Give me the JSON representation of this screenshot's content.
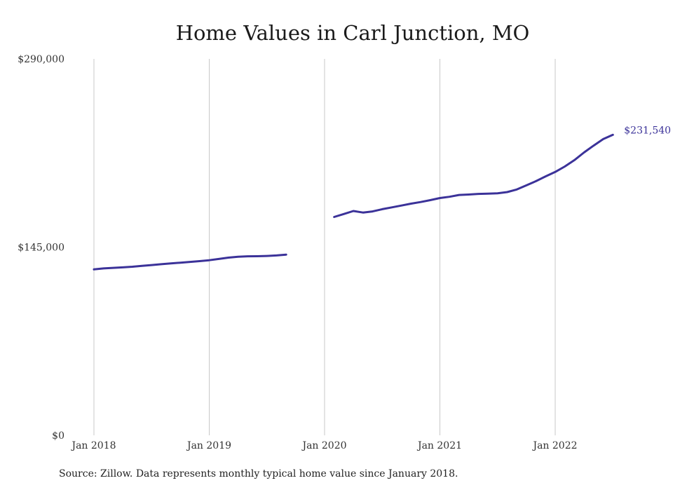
{
  "chart_data": {
    "type": "line",
    "title": "Home Values in Carl Junction, MO",
    "xlabel": "",
    "ylabel": "",
    "ylim": [
      0,
      290000
    ],
    "y_ticks": [
      "$0",
      "$145,000",
      "$290,000"
    ],
    "y_tick_values": [
      0,
      145000,
      290000
    ],
    "x_tick_labels": [
      "Jan 2018",
      "Jan 2019",
      "Jan 2020",
      "Jan 2021",
      "Jan 2022"
    ],
    "x_tick_dates": [
      "2018-01",
      "2019-01",
      "2020-01",
      "2021-01",
      "2022-01"
    ],
    "grid": "vertical",
    "line_color": "#3b3299",
    "end_label": "$231,540",
    "series": [
      {
        "segments": [
          {
            "x": [
              "2018-01",
              "2018-02",
              "2018-03",
              "2018-04",
              "2018-05",
              "2018-06",
              "2018-07",
              "2018-08",
              "2018-09",
              "2018-10",
              "2018-11",
              "2018-12",
              "2019-01",
              "2019-02",
              "2019-03",
              "2019-04",
              "2019-05",
              "2019-06",
              "2019-07",
              "2019-08",
              "2019-09"
            ],
            "y": [
              127800,
              128600,
              129000,
              129400,
              129900,
              130600,
              131200,
              131800,
              132400,
              133000,
              133600,
              134200,
              134900,
              135900,
              136900,
              137600,
              137900,
              138000,
              138200,
              138600,
              139200
            ]
          },
          {
            "x": [
              "2020-02",
              "2020-03",
              "2020-04",
              "2020-05",
              "2020-06",
              "2020-07",
              "2020-08",
              "2020-09",
              "2020-10",
              "2020-11",
              "2020-12",
              "2021-01",
              "2021-02",
              "2021-03",
              "2021-04",
              "2021-05",
              "2021-06",
              "2021-07",
              "2021-08",
              "2021-09",
              "2021-10",
              "2021-11",
              "2021-12",
              "2022-01",
              "2022-02",
              "2022-03",
              "2022-04",
              "2022-05",
              "2022-06",
              "2022-07"
            ],
            "y": [
              168200,
              170500,
              172800,
              171600,
              172500,
              174200,
              175600,
              177000,
              178500,
              179700,
              181200,
              182800,
              183800,
              185200,
              185500,
              186000,
              186200,
              186500,
              187400,
              189400,
              192600,
              195800,
              199500,
              202900,
              207100,
              212000,
              217900,
              223200,
              228200,
              231540
            ]
          }
        ]
      }
    ]
  },
  "source_note": "Source: Zillow. Data represents monthly typical home value since January 2018."
}
